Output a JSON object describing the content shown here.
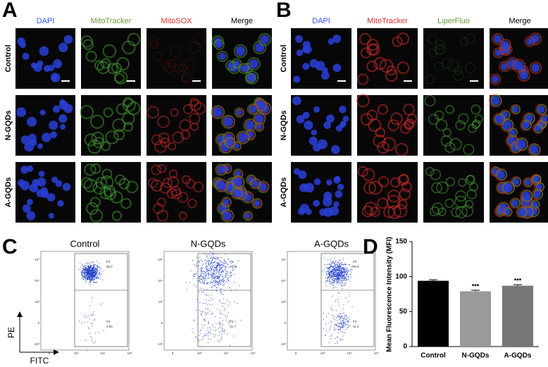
{
  "panel_a": {
    "label": "A",
    "columns": [
      "DAPI",
      "MitoTracker",
      "MitoSOX",
      "Merge"
    ],
    "rows": [
      "Control",
      "N-GQDs",
      "A-GQDs"
    ]
  },
  "panel_b": {
    "label": "B",
    "columns": [
      "DAPI",
      "MitoTracker",
      "LiperFluo",
      "Merge"
    ],
    "rows": [
      "Control",
      "N-GQDs",
      "A-GQDs"
    ]
  },
  "panel_c": {
    "label": "C",
    "y_label": "PE",
    "x_label": "FITC",
    "xticks": [
      "0",
      "10³",
      "10⁴",
      "10⁵"
    ],
    "yticks": [
      "10⁵",
      "10⁴",
      "10³",
      "0",
      "-10³"
    ],
    "plots": [
      {
        "title": "Control",
        "gates": [
          {
            "name": "P3",
            "value": 95.2
          },
          {
            "name": "P4",
            "value": 4.55
          }
        ]
      },
      {
        "title": "N-GQDs",
        "gates": [
          {
            "name": "P3",
            "value": 76.5
          },
          {
            "name": "P4",
            "value": 21.7
          }
        ]
      },
      {
        "title": "A-GQDs",
        "gates": [
          {
            "name": "P3",
            "value": 88.5
          },
          {
            "name": "P4",
            "value": 11.2
          }
        ]
      }
    ]
  },
  "chart_data": {
    "type": "bar",
    "panel_label": "D",
    "y_label": "Mean Fluorescence Intensity (MFI)",
    "categories": [
      "Control",
      "N-GQDs",
      "A-GQDs"
    ],
    "values": [
      94,
      79,
      87
    ],
    "errors": [
      1.5,
      1.5,
      1.5
    ],
    "significance": [
      null,
      "***",
      "***"
    ],
    "colors": [
      "#000000",
      "#9a9a9a",
      "#777777"
    ],
    "ylim": [
      0,
      150
    ],
    "yticks": [
      0,
      50,
      100,
      150
    ]
  }
}
